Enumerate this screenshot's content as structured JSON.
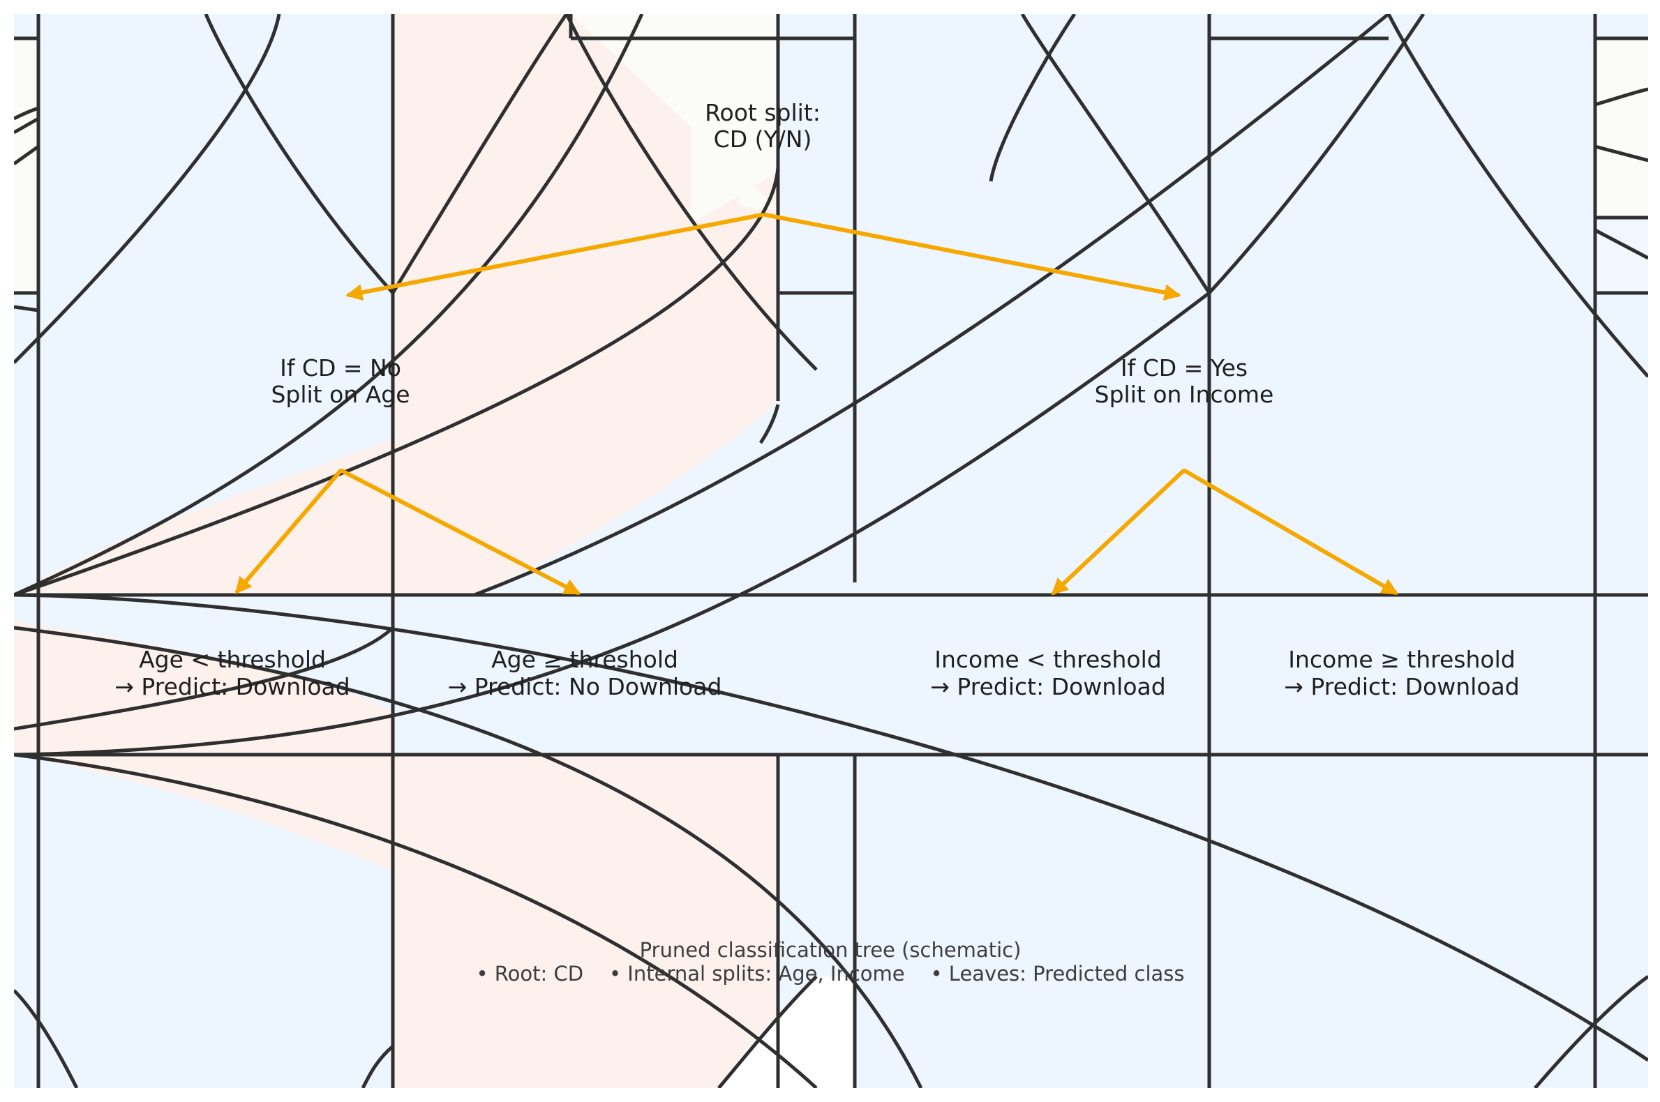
{
  "diagram": {
    "kind": "pruned classification tree (schematic)",
    "root": {
      "line1": "Root split:",
      "line2": "CD (Y/N)"
    },
    "internal": {
      "left": {
        "line1": "If CD = No",
        "line2": "Split on Age"
      },
      "right": {
        "line1": "If CD = Yes",
        "line2": "Split on Income"
      }
    },
    "leaves": [
      {
        "line1": "Age < threshold",
        "line2": "→ Predict: Download"
      },
      {
        "line1": "Age ≥ threshold",
        "line2": "→ Predict: No Download"
      },
      {
        "line1": "Income < threshold",
        "line2": "→ Predict: Download"
      },
      {
        "line1": "Income ≥ threshold",
        "line2": "→ Predict: Download"
      }
    ],
    "caption": {
      "line1": "Pruned classification tree (schematic)",
      "line2": "• Root: CD    • Internal splits: Age, Income    • Leaves: Predicted class"
    }
  },
  "colors": {
    "arrow": "#F5A800",
    "stroke": "#2f2f2f",
    "blue_fill": "#EDF5FF",
    "pink_fill": "#FDF1EE",
    "cream_fill": "#FBFBF7"
  }
}
